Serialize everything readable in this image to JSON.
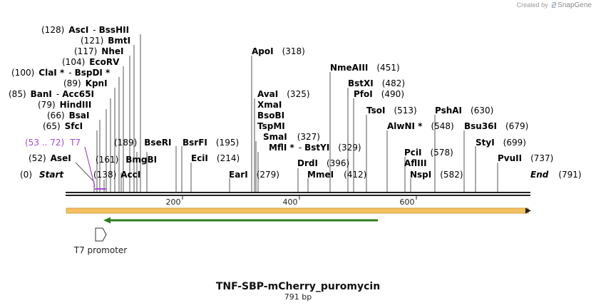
{
  "credit": {
    "prefix": "Created by",
    "brand": "SnapGene"
  },
  "map": {
    "name": "TNF-SBP-mCherry_puromycin",
    "length_label": "791 bp",
    "ruler_ticks": [
      "200",
      "400",
      "600"
    ],
    "start_label": "Start",
    "start_pos": "(0)",
    "end_label": "End",
    "end_pos": "(791)",
    "feature_label": "T7 promoter",
    "primer": {
      "range": "(53 .. 72)",
      "name": "T7"
    },
    "colors": {
      "orf": "#f4c060",
      "arrow": "#2e7d1e",
      "t7": "#a64bd6",
      "lines": "#555555"
    }
  },
  "sites": {
    "asci": {
      "pos": "(128)",
      "name": "AscI",
      "sep": "-",
      "name2": "BssHII"
    },
    "bmti": {
      "pos": "(121)",
      "name": "BmtI"
    },
    "nhei": {
      "pos": "(117)",
      "name": "NheI"
    },
    "ecorv": {
      "pos": "(104)",
      "name": "EcoRV"
    },
    "clai": {
      "pos": "(100)",
      "name": "ClaI *",
      "sep": "-",
      "name2": "BspDI *"
    },
    "kpni": {
      "pos": "(89)",
      "name": "KpnI"
    },
    "bani": {
      "pos": "(85)",
      "name": "BanI",
      "sep": "-",
      "name2": "Acc65I"
    },
    "hindiii": {
      "pos": "(79)",
      "name": "HindIII"
    },
    "bsai": {
      "pos": "(66)",
      "name": "BsaI"
    },
    "sfci": {
      "pos": "(65)",
      "name": "SfcI"
    },
    "asei": {
      "pos": "(52)",
      "name": "AseI"
    },
    "bmgbi": {
      "pos": "(189)",
      "name": "BmgBI"
    },
    "acci": {
      "pos": "(161)",
      "name": "AccI"
    },
    "n138": {
      "pos": "(138)"
    },
    "bseri": {
      "name": "BseRI"
    },
    "bsrfi": {
      "pos": "(195)",
      "name": "BsrFI"
    },
    "ecli": {
      "pos": "(214)",
      "name": "EciI"
    },
    "apoi": {
      "pos": "(318)",
      "name": "ApoI"
    },
    "avai": {
      "pos": "(325)",
      "name": "AvaI"
    },
    "xmai": {
      "name": "XmaI"
    },
    "bsobi": {
      "name": "BsoBI"
    },
    "tspmi": {
      "name": "TspMI"
    },
    "smai": {
      "pos": "(327)",
      "name": "SmaI"
    },
    "mfli": {
      "pos": "(329)",
      "name": "MflI *",
      "sep": "-",
      "name2": "BstYI"
    },
    "eari": {
      "pos": "(279)",
      "name": "EarI"
    },
    "nmeaiii": {
      "pos": "(451)",
      "name": "NmeAIII"
    },
    "bstxi": {
      "pos": "(482)",
      "name": "BstXI"
    },
    "pfoi": {
      "pos": "(490)",
      "name": "PfoI"
    },
    "drdi": {
      "pos": "(396)",
      "name": "DrdI"
    },
    "mmei": {
      "pos": "(412)",
      "name": "MmeI"
    },
    "tsoi": {
      "pos": "(513)",
      "name": "TsoI"
    },
    "alwni": {
      "pos": "(548)",
      "name": "AlwNI *"
    },
    "pshai": {
      "pos": "(630)",
      "name": "PshAI"
    },
    "bsu36i": {
      "pos": "(679)",
      "name": "Bsu36I"
    },
    "styi": {
      "pos": "(699)",
      "name": "StyI"
    },
    "pvuii": {
      "pos": "(737)",
      "name": "PvuII"
    },
    "pcii": {
      "pos": "(578)",
      "name": "PciI"
    },
    "afliii": {
      "name": "AflIII"
    },
    "nspi": {
      "pos": "(582)",
      "name": "NspI"
    }
  }
}
